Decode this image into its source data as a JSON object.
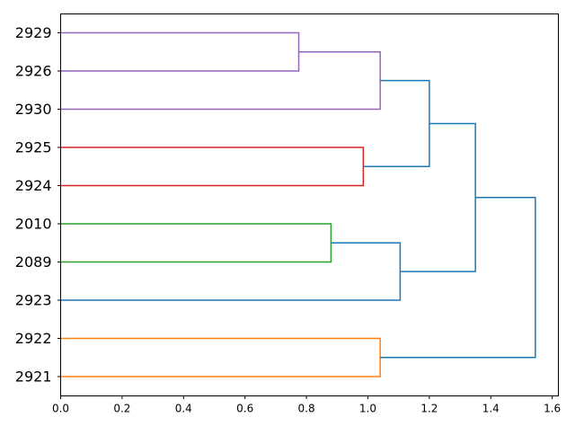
{
  "chart_data": {
    "type": "dendrogram",
    "orientation": "horizontal",
    "leaves": [
      "2929",
      "2926",
      "2930",
      "2925",
      "2924",
      "2010",
      "2089",
      "2923",
      "2922",
      "2921"
    ],
    "xlim": [
      0,
      1.62
    ],
    "x_ticks": [
      0.0,
      0.2,
      0.4,
      0.6,
      0.8,
      1.0,
      1.2,
      1.4,
      1.6
    ],
    "x_tick_labels": [
      "0.0",
      "0.2",
      "0.4",
      "0.6",
      "0.8",
      "1.0",
      "1.2",
      "1.4",
      "1.6"
    ],
    "xlabel": "",
    "ylabel": "",
    "title": "",
    "grid": false,
    "merges": [
      {
        "name": "2929+2926",
        "left": "2929",
        "right": "2926",
        "height": 0.775,
        "color": "#9467bd"
      },
      {
        "name": "(2929,2926)+2930",
        "left": "2929+2926",
        "right": "2930",
        "height": 1.04,
        "color": "#9467bd"
      },
      {
        "name": "2925+2924",
        "left": "2925",
        "right": "2924",
        "height": 0.985,
        "color": "#d62728"
      },
      {
        "name": "purple+red",
        "left": "(2929,2926)+2930",
        "right": "2925+2924",
        "height": 1.2,
        "color": "#1f77b4"
      },
      {
        "name": "2010+2089",
        "left": "2010",
        "right": "2089",
        "height": 0.88,
        "color": "#2ca02c"
      },
      {
        "name": "green+2923",
        "left": "2010+2089",
        "right": "2923",
        "height": 1.105,
        "color": "#1f77b4"
      },
      {
        "name": "upper+middle",
        "left": "purple+red",
        "right": "green+2923",
        "height": 1.35,
        "color": "#1f77b4"
      },
      {
        "name": "2922+2921",
        "left": "2922",
        "right": "2921",
        "height": 1.04,
        "color": "#ff7f0e"
      },
      {
        "name": "root",
        "left": "upper+middle",
        "right": "2922+2921",
        "height": 1.545,
        "color": "#1f77b4"
      }
    ]
  }
}
